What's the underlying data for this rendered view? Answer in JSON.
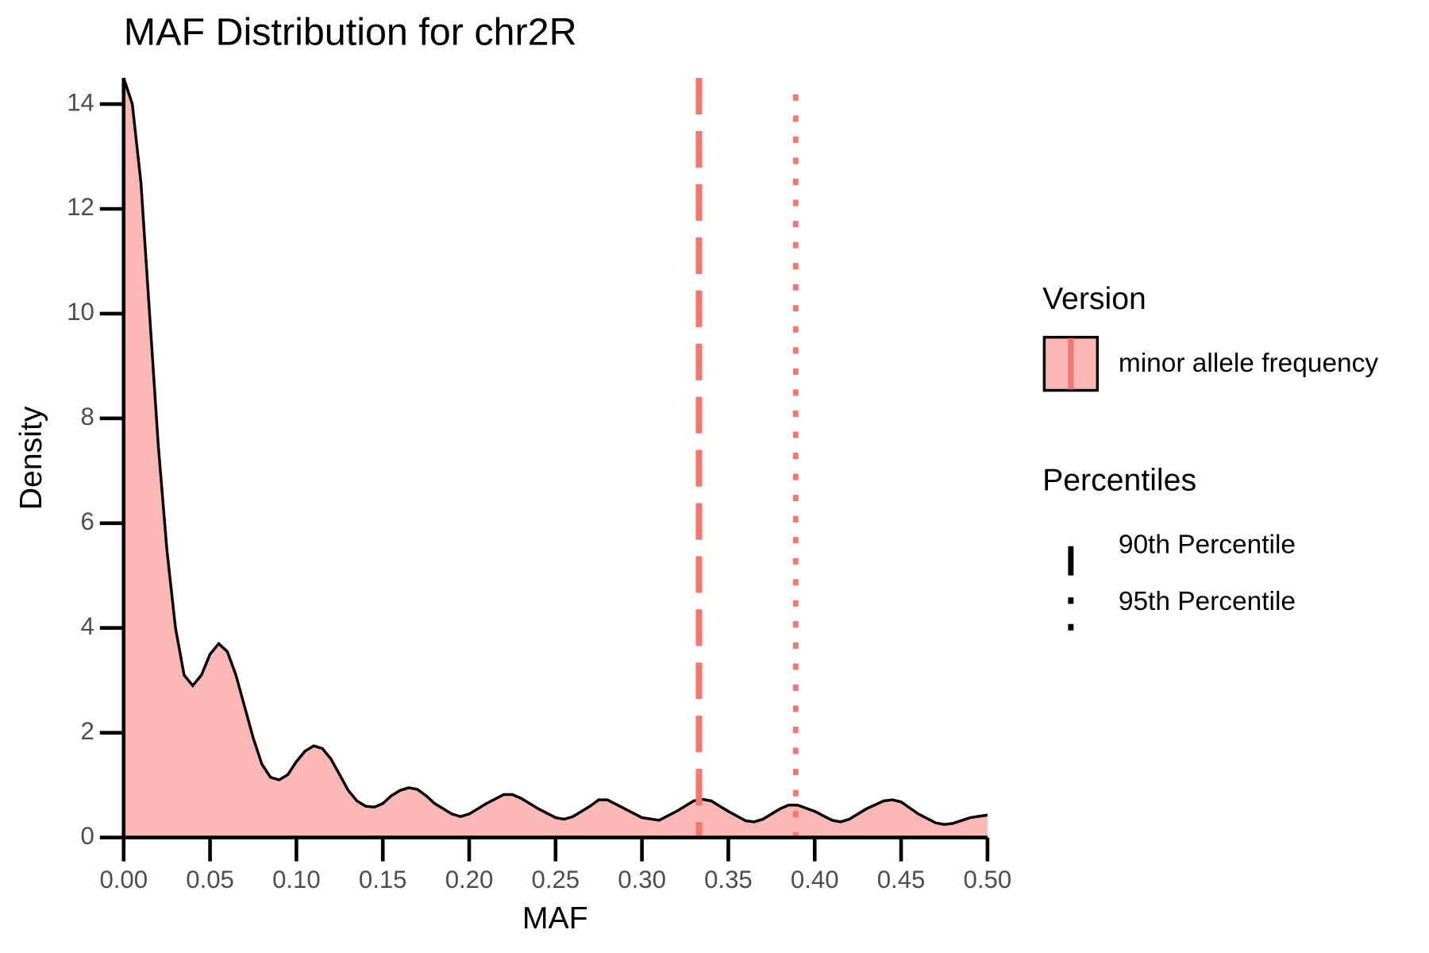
{
  "chart_data": {
    "type": "density",
    "title": "MAF Distribution for chr2R",
    "x_label": "MAF",
    "y_label": "Density",
    "xlim": [
      0,
      0.5
    ],
    "ylim": [
      0,
      14.5
    ],
    "xticks": [
      {
        "value": 0,
        "label": "0.00"
      },
      {
        "value": 0.05,
        "label": "0.05"
      },
      {
        "value": 0.1,
        "label": "0.10"
      },
      {
        "value": 0.15,
        "label": "0.15"
      },
      {
        "value": 0.2,
        "label": "0.20"
      },
      {
        "value": 0.25,
        "label": "0.25"
      },
      {
        "value": 0.3,
        "label": "0.30"
      },
      {
        "value": 0.35,
        "label": "0.35"
      },
      {
        "value": 0.4,
        "label": "0.40"
      },
      {
        "value": 0.45,
        "label": "0.45"
      },
      {
        "value": 0.5,
        "label": "0.50"
      }
    ],
    "yticks": [
      0,
      2,
      4,
      6,
      8,
      10,
      12,
      14
    ],
    "x": [
      0,
      0.005,
      0.01,
      0.015,
      0.02,
      0.025,
      0.03,
      0.035,
      0.04,
      0.045,
      0.05,
      0.055,
      0.06,
      0.065,
      0.07,
      0.075,
      0.08,
      0.085,
      0.09,
      0.095,
      0.1,
      0.105,
      0.11,
      0.115,
      0.12,
      0.125,
      0.13,
      0.135,
      0.14,
      0.145,
      0.15,
      0.155,
      0.16,
      0.165,
      0.17,
      0.175,
      0.18,
      0.19,
      0.195,
      0.2,
      0.21,
      0.22,
      0.225,
      0.23,
      0.24,
      0.25,
      0.255,
      0.26,
      0.27,
      0.275,
      0.28,
      0.29,
      0.3,
      0.31,
      0.32,
      0.33,
      0.335,
      0.34,
      0.35,
      0.36,
      0.365,
      0.37,
      0.38,
      0.385,
      0.39,
      0.4,
      0.41,
      0.415,
      0.42,
      0.43,
      0.44,
      0.445,
      0.45,
      0.46,
      0.47,
      0.475,
      0.48,
      0.49,
      0.5
    ],
    "series": [
      {
        "name": "minor allele frequency",
        "color": "#fbb8b4",
        "values": [
          14.5,
          14.0,
          12.5,
          10,
          7.5,
          5.5,
          4,
          3.1,
          2.9,
          3.1,
          3.5,
          3.7,
          3.55,
          3.1,
          2.5,
          1.9,
          1.4,
          1.15,
          1.1,
          1.2,
          1.45,
          1.65,
          1.75,
          1.7,
          1.5,
          1.2,
          0.9,
          0.7,
          0.6,
          0.58,
          0.65,
          0.8,
          0.9,
          0.95,
          0.92,
          0.8,
          0.65,
          0.45,
          0.4,
          0.45,
          0.65,
          0.82,
          0.82,
          0.75,
          0.55,
          0.38,
          0.35,
          0.4,
          0.6,
          0.72,
          0.72,
          0.55,
          0.38,
          0.33,
          0.5,
          0.7,
          0.73,
          0.7,
          0.5,
          0.32,
          0.3,
          0.35,
          0.55,
          0.62,
          0.62,
          0.5,
          0.33,
          0.3,
          0.35,
          0.55,
          0.7,
          0.72,
          0.68,
          0.45,
          0.28,
          0.25,
          0.27,
          0.38,
          0.43
        ]
      }
    ],
    "line_color": "#f8766d",
    "legend_title": "Version",
    "percentile_title": "Percentiles",
    "percentiles": [
      {
        "name": "90th Percentile",
        "value": 0.333,
        "style": "dashed"
      },
      {
        "name": "95th Percentile",
        "value": 0.389,
        "style": "dotted"
      }
    ]
  }
}
